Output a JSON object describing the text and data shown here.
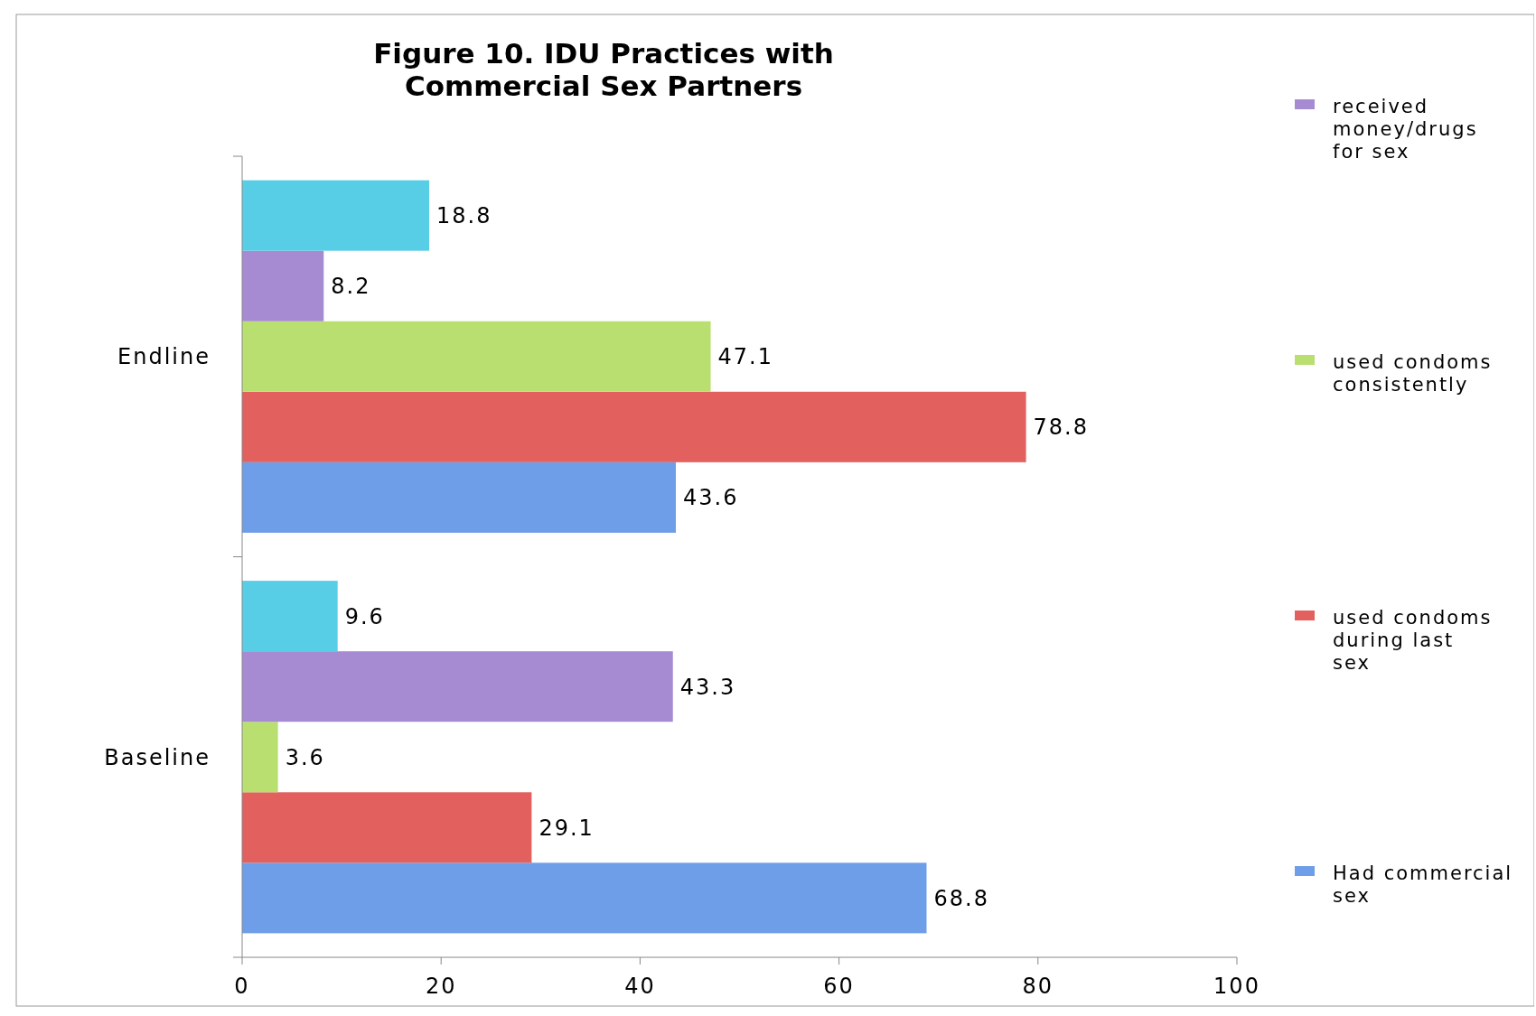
{
  "chart_data": {
    "type": "bar",
    "orientation": "horizontal",
    "title": "Figure 10. IDU Practices with\nCommercial Sex Partners",
    "categories": [
      "Endline",
      "Baseline"
    ],
    "series": [
      {
        "name": "Had commercial sex",
        "color": "#6f9ee8",
        "values": [
          43.6,
          68.8
        ]
      },
      {
        "name": "used condoms during last sex",
        "color": "#e2605e",
        "values": [
          78.8,
          29.1
        ]
      },
      {
        "name": "used condoms consistently",
        "color": "#b9df70",
        "values": [
          47.1,
          3.6
        ]
      },
      {
        "name": "received money/drugs for sex",
        "color": "#a68bd2",
        "values": [
          8.2,
          43.3
        ]
      },
      {
        "color": "#58cde6",
        "values": [
          18.8,
          9.6
        ]
      }
    ],
    "xlim": [
      0,
      100
    ],
    "xticks": [
      0,
      20,
      40,
      60,
      80,
      100
    ],
    "data_labels": true,
    "legend": "right",
    "grid": false
  }
}
